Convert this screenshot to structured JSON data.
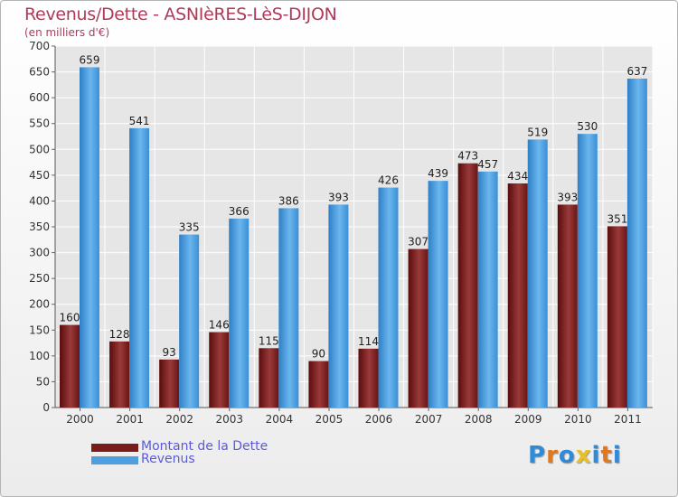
{
  "title": "Revenus/Dette - ASNIèRES-LèS-DIJON",
  "subtitle": "(en milliers d'€)",
  "logo": {
    "letters": [
      "P",
      "r",
      "o",
      "x",
      "i",
      "t",
      "i"
    ],
    "colors": [
      "#2f8ad8",
      "#e07820",
      "#2f8ad8",
      "#e8c020",
      "#2f8ad8",
      "#e07820",
      "#2f8ad8"
    ]
  },
  "chart_data": {
    "type": "bar",
    "categories": [
      "2000",
      "2001",
      "2002",
      "2003",
      "2004",
      "2005",
      "2006",
      "2007",
      "2008",
      "2009",
      "2010",
      "2011"
    ],
    "series": [
      {
        "name": "Montant de la Dette",
        "color": "#7a1c1c",
        "values": [
          160,
          128,
          93,
          146,
          115,
          90,
          114,
          307,
          473,
          434,
          393,
          351
        ]
      },
      {
        "name": "Revenus",
        "color": "#4d9fe0",
        "values": [
          659,
          541,
          335,
          366,
          386,
          393,
          426,
          439,
          457,
          519,
          530,
          637
        ]
      }
    ],
    "ylim": [
      0,
      700
    ],
    "yticks": [
      0,
      50,
      100,
      150,
      200,
      250,
      300,
      350,
      400,
      450,
      500,
      550,
      600,
      650,
      700
    ],
    "grid": true,
    "legend": "bottom-left"
  }
}
